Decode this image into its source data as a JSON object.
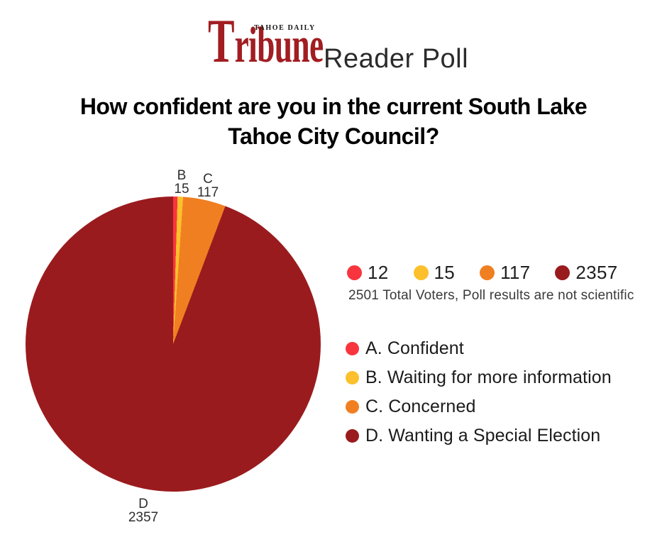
{
  "masthead": {
    "kicker": "TAHOE DAILY",
    "brand": "Tribune",
    "subtitle": "Reader Poll",
    "brand_color": "#A11D21"
  },
  "question": {
    "line1": "How confident are you in the current South Lake",
    "line2": "Tahoe City Council?"
  },
  "summary": {
    "counts": [
      {
        "value": "12",
        "color": "#F8353E"
      },
      {
        "value": "15",
        "color": "#FBC02B"
      },
      {
        "value": "117",
        "color": "#F07F22"
      },
      {
        "value": "2357",
        "color": "#9A1B1E"
      }
    ],
    "note": "2501 Total Voters, Poll results are not scientific"
  },
  "legend": [
    {
      "label": "A. Confident",
      "color": "#F8353E"
    },
    {
      "label": "B. Waiting for more information",
      "color": "#FBC02B"
    },
    {
      "label": "C. Concerned",
      "color": "#F07F22"
    },
    {
      "label": "D. Wanting a Special Election",
      "color": "#9A1B1E"
    }
  ],
  "chart_data": {
    "type": "pie",
    "title": "How confident are you in the current South Lake Tahoe City Council?",
    "categories": [
      "A. Confident",
      "B. Waiting for more information",
      "C. Concerned",
      "D. Wanting a Special Election"
    ],
    "values": [
      12,
      15,
      117,
      2357
    ],
    "colors": [
      "#F8353E",
      "#FBC02B",
      "#F07F22",
      "#9A1B1E"
    ],
    "total": 2501,
    "start_angle_deg": 0,
    "direction": "clockwise",
    "legend_position": "right",
    "slice_labels": [
      {
        "letter": "B",
        "value": "15"
      },
      {
        "letter": "C",
        "value": "117"
      },
      {
        "letter": "D",
        "value": "2357"
      }
    ]
  }
}
